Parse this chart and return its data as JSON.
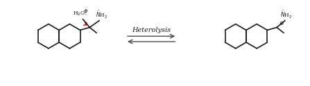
{
  "title": "",
  "background_color": "#ffffff",
  "arrow_label": "Heterolysis",
  "arrow_color": "#4a4a4a",
  "bond_color": "#1a1a1a",
  "red_color": "#cc0000",
  "plus_color": "#1a1a1a",
  "figsize": [
    4.47,
    1.24
  ],
  "dpi": 100
}
